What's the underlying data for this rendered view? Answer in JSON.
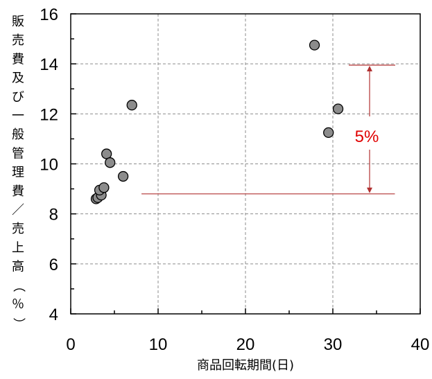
{
  "chart_data": {
    "type": "scatter",
    "title": "",
    "xlabel": "商品回転期間(日)",
    "ylabel": "販売費及び一般管理費／売上高（％）",
    "xlim": [
      0,
      40
    ],
    "ylim": [
      4,
      16
    ],
    "x_ticks": [
      "0",
      "10",
      "20",
      "30",
      "40"
    ],
    "y_ticks": [
      "4",
      "6",
      "8",
      "10",
      "12",
      "14",
      "16"
    ],
    "grid": true,
    "legend": "none",
    "series": [
      {
        "points": [
          {
            "x": 2.9,
            "y": 8.6
          },
          {
            "x": 3.1,
            "y": 8.65
          },
          {
            "x": 3.5,
            "y": 8.75
          },
          {
            "x": 3.3,
            "y": 8.95
          },
          {
            "x": 3.8,
            "y": 9.05
          },
          {
            "x": 4.1,
            "y": 10.4
          },
          {
            "x": 4.5,
            "y": 10.05
          },
          {
            "x": 6.0,
            "y": 9.5
          },
          {
            "x": 7.0,
            "y": 12.35
          },
          {
            "x": 27.9,
            "y": 14.75
          },
          {
            "x": 29.5,
            "y": 11.25
          },
          {
            "x": 30.6,
            "y": 12.2
          }
        ]
      }
    ],
    "annotation": {
      "label": "5%",
      "y_low": 8.8,
      "y_high": 13.95,
      "x_from": 8.1,
      "x_to": 37.1,
      "color": "#e00000",
      "line_color": "#b03030"
    },
    "marker_fill": "#8c8c8c",
    "marker_stroke": "#000000"
  }
}
